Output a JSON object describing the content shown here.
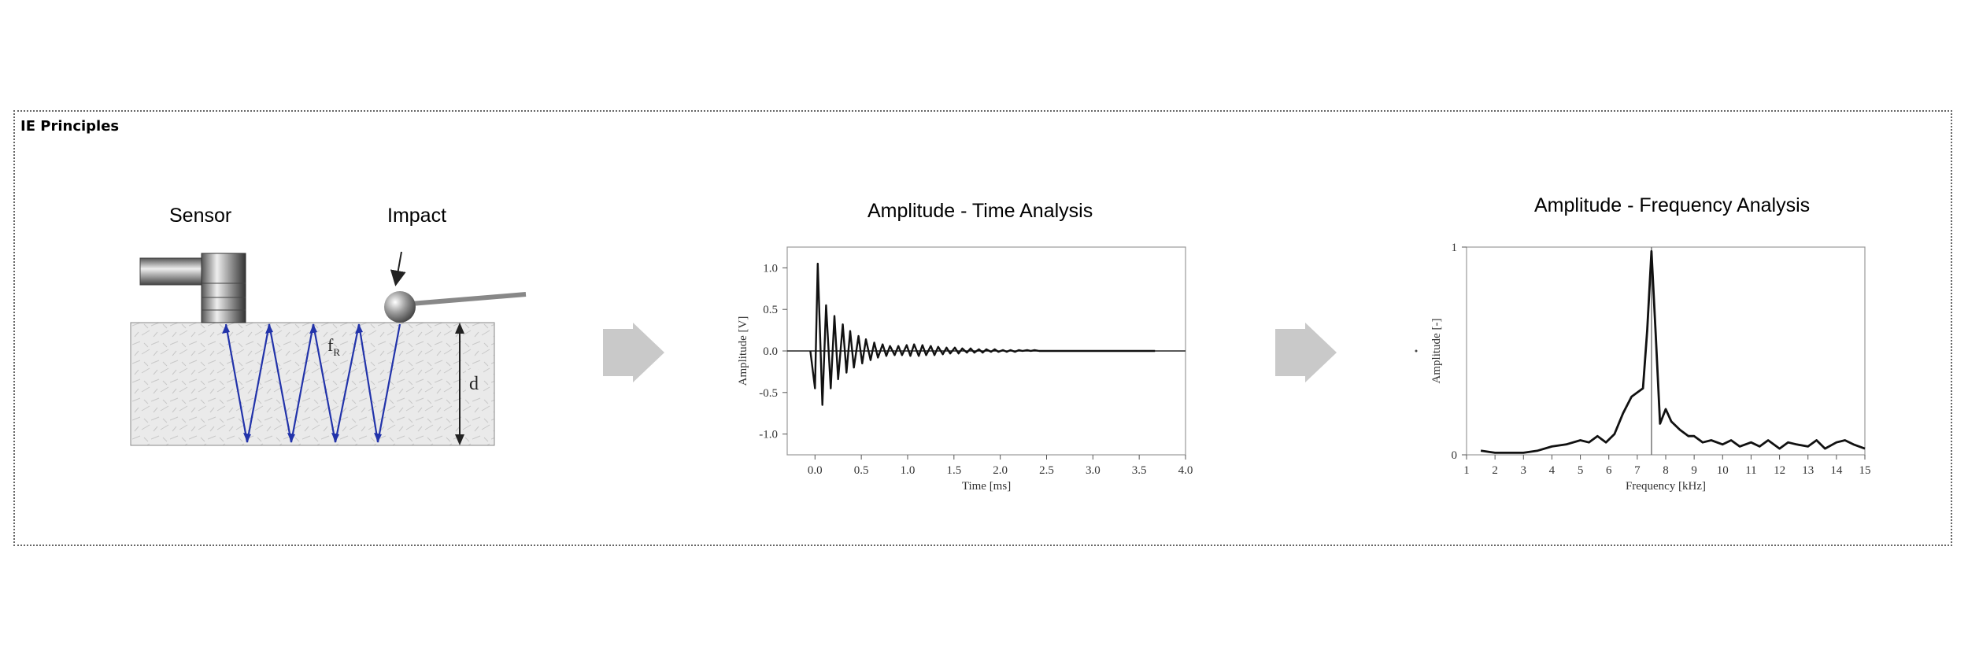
{
  "section": {
    "title": "IE Principles"
  },
  "diagram": {
    "sensor_label": "Sensor",
    "impact_label": "Impact",
    "freq_symbol": "f",
    "freq_subscript": "R",
    "depth_label": "d"
  },
  "charts": {
    "time_title": "Amplitude - Time Analysis",
    "freq_title": "Amplitude - Frequency Analysis"
  },
  "chart_data": [
    {
      "type": "line",
      "title": "Amplitude - Time Analysis",
      "xlabel": "Time [ms]",
      "ylabel": "Amplitude [V]",
      "xlim": [
        -0.3,
        4.0
      ],
      "ylim": [
        -1.25,
        1.25
      ],
      "xticks": [
        "0.0",
        "0.5",
        "1.0",
        "1.5",
        "2.0",
        "2.5",
        "3.0",
        "3.5",
        "4.0"
      ],
      "yticks": [
        "1.0",
        "0.5",
        "0.0",
        "-0.5",
        "-1.0"
      ],
      "grid": false,
      "series": [
        {
          "x": [
            -0.05,
            0.0,
            0.03,
            0.08,
            0.12,
            0.17,
            0.21,
            0.25,
            0.3,
            0.34,
            0.38,
            0.42,
            0.47,
            0.51,
            0.55,
            0.6,
            0.64,
            0.68,
            0.73,
            0.77,
            0.81,
            0.86,
            0.9,
            0.94,
            0.99,
            1.03,
            1.07,
            1.12,
            1.16,
            1.2,
            1.25,
            1.29,
            1.33,
            1.38,
            1.42,
            1.46,
            1.51,
            1.55,
            1.59,
            1.64,
            1.68,
            1.72,
            1.77,
            1.81,
            1.85,
            1.9,
            1.94,
            1.98,
            2.03,
            2.07,
            2.11,
            2.16,
            2.2,
            2.24,
            2.29,
            2.33,
            2.37,
            2.42,
            2.46,
            2.5,
            2.55,
            2.59,
            2.63,
            2.68,
            2.72,
            2.76,
            2.81,
            2.85,
            2.89,
            2.94,
            2.98,
            3.02,
            3.07,
            3.11,
            3.15,
            3.2,
            3.24,
            3.28,
            3.33,
            3.37,
            3.41,
            3.46,
            3.5,
            3.54,
            3.59,
            3.63,
            3.67
          ],
          "y": [
            0.0,
            -0.45,
            1.05,
            -0.65,
            0.55,
            -0.45,
            0.42,
            -0.34,
            0.32,
            -0.26,
            0.24,
            -0.2,
            0.18,
            -0.15,
            0.14,
            -0.11,
            0.1,
            -0.08,
            0.08,
            -0.06,
            0.06,
            -0.05,
            0.06,
            -0.05,
            0.07,
            -0.06,
            0.08,
            -0.06,
            0.07,
            -0.05,
            0.06,
            -0.05,
            0.05,
            -0.04,
            0.04,
            -0.03,
            0.04,
            -0.03,
            0.03,
            -0.02,
            0.03,
            -0.02,
            0.02,
            -0.02,
            0.02,
            -0.01,
            0.02,
            -0.01,
            0.01,
            -0.01,
            0.01,
            -0.01,
            0.01,
            0.0,
            0.01,
            0.0,
            0.01,
            0.0,
            0.0,
            0.0,
            0.0,
            0.0,
            0.0,
            0.0,
            0.0,
            0.0,
            0.0,
            0.0,
            0.0,
            0.0,
            0.0,
            0.0,
            0.0,
            0.0,
            0.0,
            0.0,
            0.0,
            0.0,
            0.0,
            0.0,
            0.0,
            0.0,
            0.0,
            0.0,
            0.0,
            0.0,
            0.0
          ]
        }
      ]
    },
    {
      "type": "line",
      "title": "Amplitude - Frequency Analysis",
      "xlabel": "Frequency [kHz]",
      "ylabel": "Amplitude [-]",
      "xlim": [
        1,
        15
      ],
      "ylim": [
        0,
        1
      ],
      "xticks": [
        "1",
        "2",
        "3",
        "4",
        "5",
        "6",
        "7",
        "8",
        "9",
        "10",
        "11",
        "12",
        "13",
        "14",
        "15"
      ],
      "yticks": [
        "1",
        "0"
      ],
      "grid": false,
      "marker_line_x": 7.5,
      "series": [
        {
          "x": [
            1.5,
            2.0,
            2.5,
            3.0,
            3.5,
            4.0,
            4.5,
            5.0,
            5.3,
            5.6,
            5.9,
            6.2,
            6.5,
            6.8,
            7.0,
            7.2,
            7.35,
            7.5,
            7.65,
            7.8,
            8.0,
            8.2,
            8.5,
            8.8,
            9.0,
            9.3,
            9.6,
            10.0,
            10.3,
            10.6,
            11.0,
            11.3,
            11.6,
            12.0,
            12.3,
            12.6,
            13.0,
            13.3,
            13.6,
            14.0,
            14.3,
            14.6,
            15.0
          ],
          "y": [
            0.02,
            0.01,
            0.01,
            0.01,
            0.02,
            0.04,
            0.05,
            0.07,
            0.06,
            0.09,
            0.06,
            0.1,
            0.2,
            0.28,
            0.3,
            0.32,
            0.6,
            0.98,
            0.58,
            0.15,
            0.22,
            0.16,
            0.12,
            0.09,
            0.09,
            0.06,
            0.07,
            0.05,
            0.07,
            0.04,
            0.06,
            0.04,
            0.07,
            0.03,
            0.06,
            0.05,
            0.04,
            0.07,
            0.03,
            0.06,
            0.07,
            0.05,
            0.03
          ]
        }
      ]
    }
  ]
}
